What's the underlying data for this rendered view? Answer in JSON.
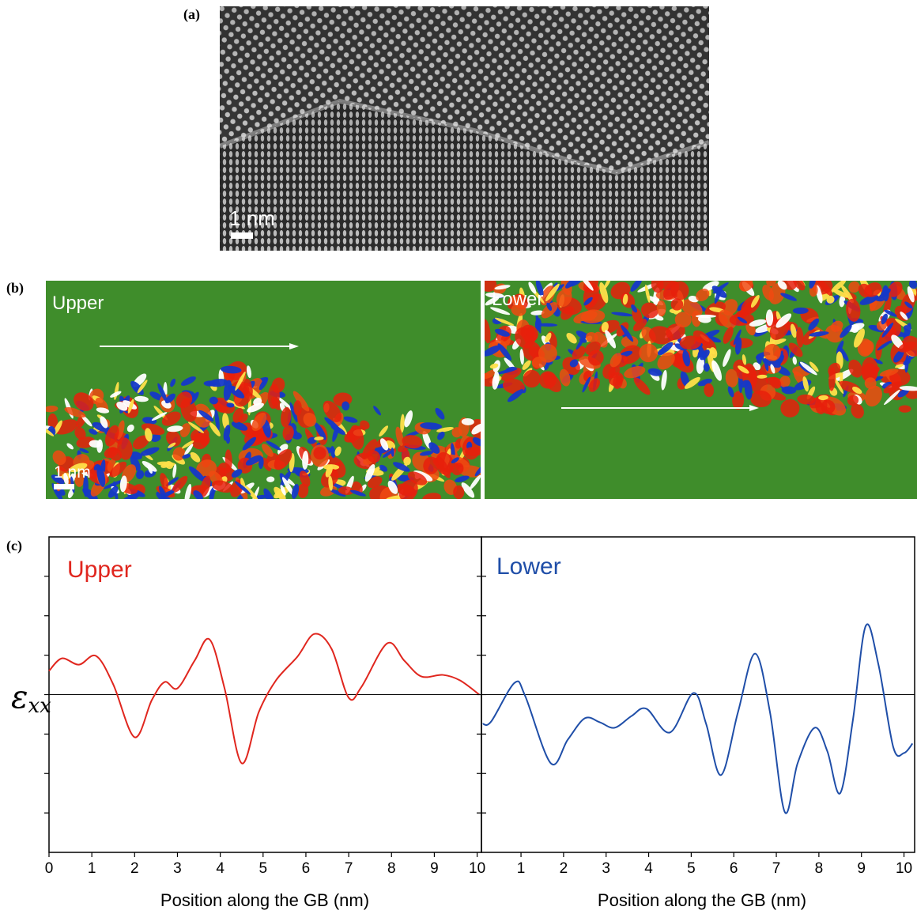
{
  "panel_a": {
    "label": "(a)",
    "scale_bar": "1 nm"
  },
  "panel_b": {
    "label": "(b)",
    "maps": [
      {
        "label": "Upper",
        "scale_bar": "1 nm"
      },
      {
        "label": "Lower"
      }
    ]
  },
  "panel_c": {
    "label": "(c)"
  },
  "chart_data": [
    {
      "type": "line",
      "ylabel_symbol": "ε",
      "ylabel_subscript": "xx",
      "xlabel": "Position along the GB (nm)",
      "xlim": [
        0,
        10.1
      ],
      "xticks": [
        0,
        1,
        2,
        3,
        4,
        5,
        6,
        7,
        8,
        9,
        10
      ],
      "ylim": [
        -4,
        4
      ],
      "yticks": [
        -3,
        -2,
        -1,
        0,
        1,
        2,
        3
      ],
      "hline": 0,
      "x": [
        0,
        0.3,
        0.7,
        1.1,
        1.5,
        2.0,
        2.4,
        2.7,
        3.0,
        3.4,
        3.75,
        4.1,
        4.5,
        4.9,
        5.3,
        5.8,
        6.2,
        6.6,
        7.0,
        7.3,
        7.9,
        8.3,
        8.7,
        9.2,
        9.6,
        10.05
      ],
      "series": [
        {
          "name": "Upper",
          "color": "#e0261e",
          "values": [
            0.6,
            0.92,
            0.76,
            0.98,
            0.26,
            -1.08,
            -0.14,
            0.32,
            0.16,
            0.86,
            1.4,
            0.16,
            -1.74,
            -0.44,
            0.36,
            0.96,
            1.54,
            1.16,
            -0.08,
            0.2,
            1.3,
            0.86,
            0.46,
            0.5,
            0.36,
            0
          ]
        }
      ]
    },
    {
      "type": "line",
      "xlabel": "Position along the GB (nm)",
      "xlim": [
        0.07,
        10.25
      ],
      "xticks": [
        1,
        2,
        3,
        4,
        5,
        6,
        7,
        8,
        9,
        10
      ],
      "ylim": [
        -4,
        4
      ],
      "yticks": [
        -3,
        -2,
        -1,
        0,
        1,
        2,
        3
      ],
      "hline": 0,
      "x": [
        0.1,
        0.3,
        0.85,
        1.1,
        1.7,
        2.1,
        2.5,
        2.85,
        3.2,
        3.6,
        3.95,
        4.5,
        5.05,
        5.35,
        5.7,
        6.1,
        6.5,
        6.85,
        7.2,
        7.5,
        7.9,
        8.2,
        8.5,
        8.8,
        9.1,
        9.4,
        9.75,
        10.0,
        10.2
      ],
      "series": [
        {
          "name": "Lower",
          "color": "#1f4ea8",
          "values": [
            -0.74,
            -0.68,
            0.3,
            -0.04,
            -1.74,
            -1.14,
            -0.6,
            -0.7,
            -0.84,
            -0.54,
            -0.36,
            -0.96,
            0.04,
            -0.74,
            -2.04,
            -0.44,
            1.04,
            -0.44,
            -2.98,
            -1.74,
            -0.84,
            -1.44,
            -2.5,
            -0.64,
            1.74,
            0.76,
            -1.34,
            -1.48,
            -1.24
          ]
        }
      ]
    }
  ]
}
